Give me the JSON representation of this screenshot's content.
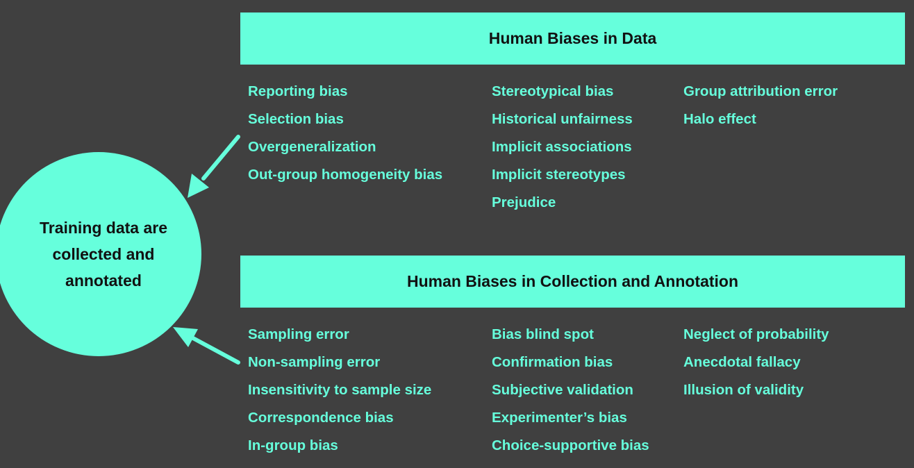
{
  "center_node": {
    "label": "Training data are collected and annotated"
  },
  "sections": [
    {
      "title": "Human Biases in Data",
      "columns": [
        [
          "Reporting bias",
          "Selection bias",
          "Overgeneralization",
          "Out-group homogeneity bias"
        ],
        [
          "Stereotypical bias",
          "Historical unfairness",
          "Implicit associations",
          "Implicit stereotypes",
          "Prejudice"
        ],
        [
          "Group attribution error",
          "Halo effect"
        ]
      ]
    },
    {
      "title": "Human Biases in Collection and Annotation",
      "columns": [
        [
          "Sampling error",
          "Non-sampling error",
          "Insensitivity to sample size",
          "Correspondence bias",
          "In-group bias"
        ],
        [
          "Bias blind spot",
          "Confirmation bias",
          "Subjective validation",
          "Experimenter’s bias",
          "Choice-supportive bias"
        ],
        [
          "Neglect of probability",
          "Anecdotal fallacy",
          "Illusion of validity"
        ]
      ]
    }
  ],
  "colors": {
    "background": "#404040",
    "accent": "#66ffdc",
    "dark_text": "#111111"
  }
}
